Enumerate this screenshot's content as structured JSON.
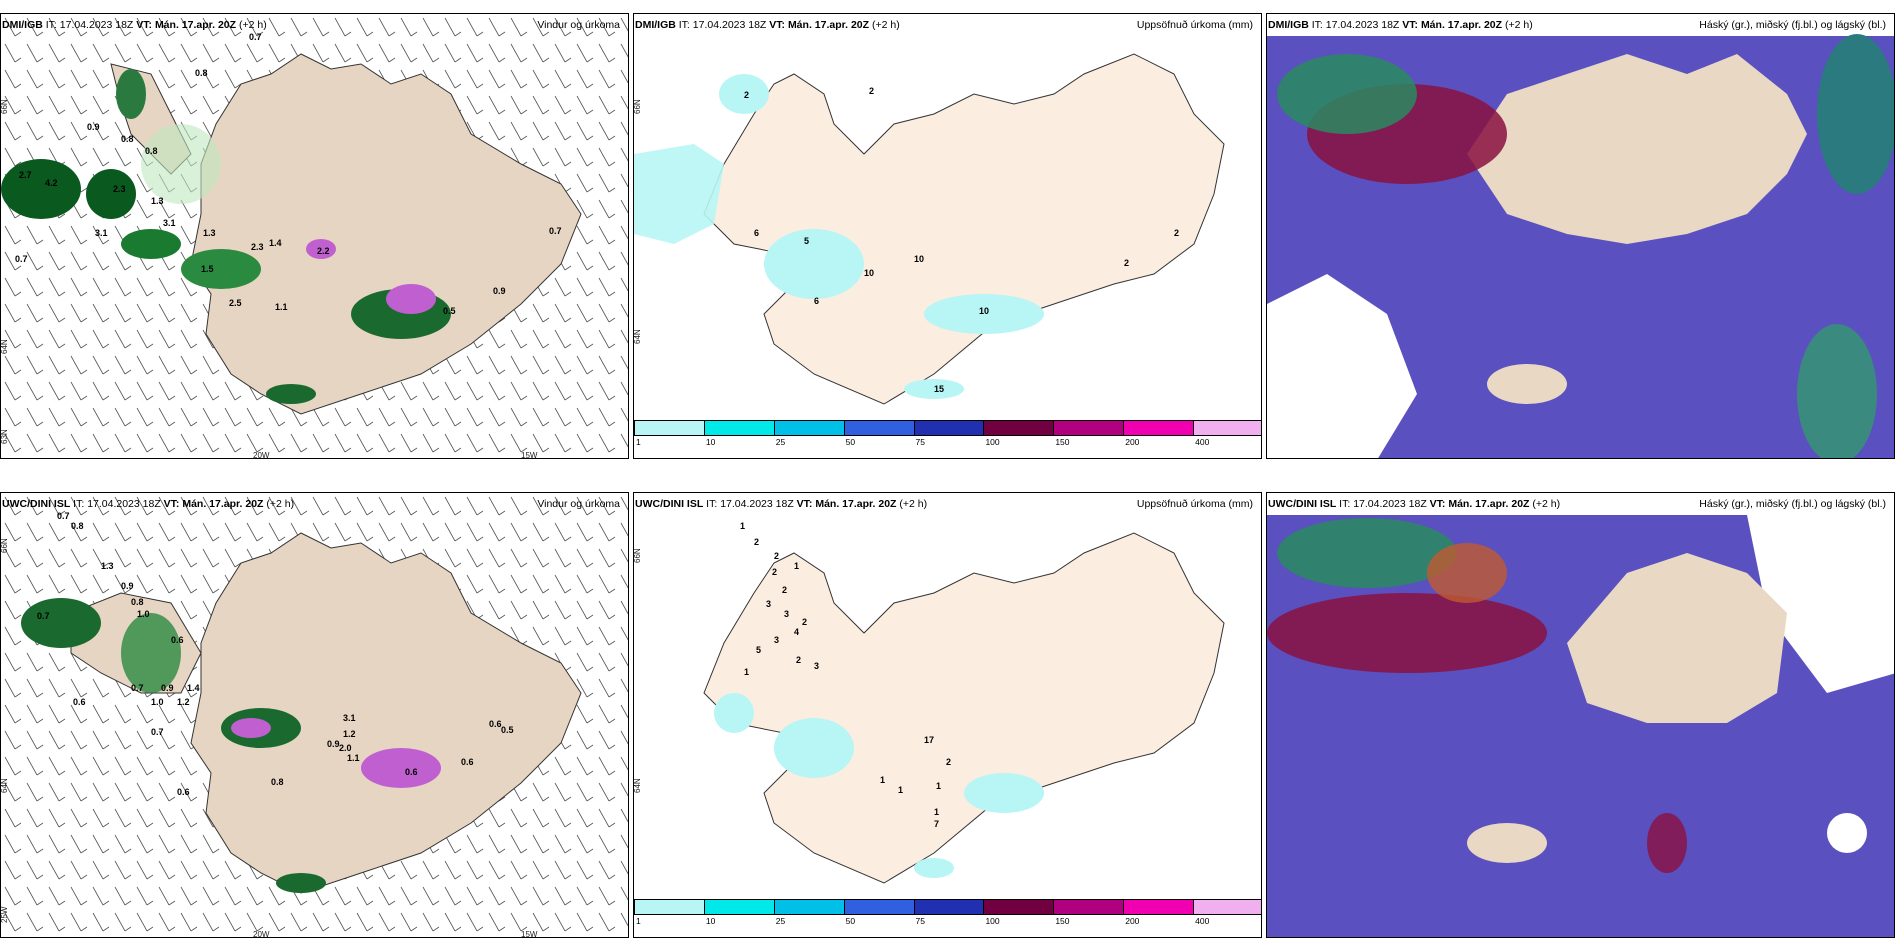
{
  "panels": [
    {
      "model": "DMI/IGB",
      "it_label": "IT:",
      "it": "17.04.2023 18Z",
      "vt_label": "VT:",
      "vt": "Mán. 17.apr. 20Z",
      "lead": "(+2 h)",
      "title": "Vindur og úrkoma"
    },
    {
      "model": "DMI/IGB",
      "it_label": "IT:",
      "it": "17.04.2023 18Z",
      "vt_label": "VT:",
      "vt": "Mán. 17.apr. 20Z",
      "lead": "(+2 h)",
      "title": "Uppsöfnuð úrkoma (mm)"
    },
    {
      "model": "DMI/IGB",
      "it_label": "IT:",
      "it": "17.04.2023 18Z",
      "vt_label": "VT:",
      "vt": "Mán. 17.apr. 20Z",
      "lead": "(+2 h)",
      "title": "Háský (gr.), miðský (fj.bl.) og lágský (bl.)"
    },
    {
      "model": "UWC/DINI ISL",
      "it_label": "IT:",
      "it": "17.04.2023 18Z",
      "vt_label": "VT:",
      "vt": "Mán. 17.apr. 20Z",
      "lead": "(+2 h)",
      "title": "Vindur og úrkoma"
    },
    {
      "model": "UWC/DINI ISL",
      "it_label": "IT:",
      "it": "17.04.2023 18Z",
      "vt_label": "VT:",
      "vt": "Mán. 17.apr. 20Z",
      "lead": "(+2 h)",
      "title": "Uppsöfnuð úrkoma (mm)"
    },
    {
      "model": "UWC/DINI ISL",
      "it_label": "IT:",
      "it": "17.04.2023 18Z",
      "vt_label": "VT:",
      "vt": "Mán. 17.apr. 20Z",
      "lead": "(+2 h)",
      "title": "Háský (gr.), miðský (fj.bl.) og lágský (bl.)"
    }
  ],
  "coords": {
    "lat66": "66N",
    "lat64": "64N",
    "lat63": "63N",
    "lon20": "20W",
    "lon15": "15W",
    "lon25": "25W"
  },
  "colorbar": {
    "ticks": [
      "1",
      "10",
      "25",
      "50",
      "75",
      "100",
      "150",
      "200",
      "400"
    ],
    "colors": [
      "#b8f5f5",
      "#00e8e8",
      "#00c0e8",
      "#3060e0",
      "#2030b0",
      "#700040",
      "#b00080",
      "#f000b0",
      "#f0b0f0"
    ]
  },
  "precip_labels_top": [
    "2.7",
    "4.2",
    "2.3",
    "0.8",
    "0.8",
    "1.3",
    "3.1",
    "1.3",
    "0.7",
    "0.9",
    "0.7",
    "0.8",
    "3.1",
    "1.5",
    "2.5",
    "1.1",
    "0.5",
    "0.9",
    "1.4",
    "2.2",
    "0.7",
    "2.3"
  ],
  "precip_labels_bottom": [
    "0.7",
    "0.8",
    "1.3",
    "0.7",
    "0.9",
    "0.8",
    "1.0",
    "0.6",
    "0.9",
    "0.7",
    "1.4",
    "1.2",
    "1.0",
    "0.7",
    "0.6",
    "0.8",
    "3.1",
    "1.2",
    "2.0",
    "0.9",
    "1.1",
    "0.6",
    "0.6",
    "0.5",
    "0.6",
    "0.6"
  ],
  "accum_labels_top": [
    "2",
    "2",
    "6",
    "5",
    "6",
    "10",
    "10",
    "10",
    "2",
    "2",
    "15"
  ],
  "accum_labels_bottom": [
    "1",
    "2",
    "2",
    "1",
    "2",
    "2",
    "3",
    "3",
    "2",
    "4",
    "3",
    "5",
    "2",
    "3",
    "1",
    "17",
    "2",
    "1",
    "1",
    "1",
    "1",
    "7"
  ],
  "map_colors": {
    "land": "#e8d8c4",
    "land_acc": "#fbeee0",
    "sea_acc": "#ffffff",
    "cloud_low": "#5a50c0",
    "cloud_mid": "#8a1040",
    "cloud_high": "#2a8a60"
  }
}
